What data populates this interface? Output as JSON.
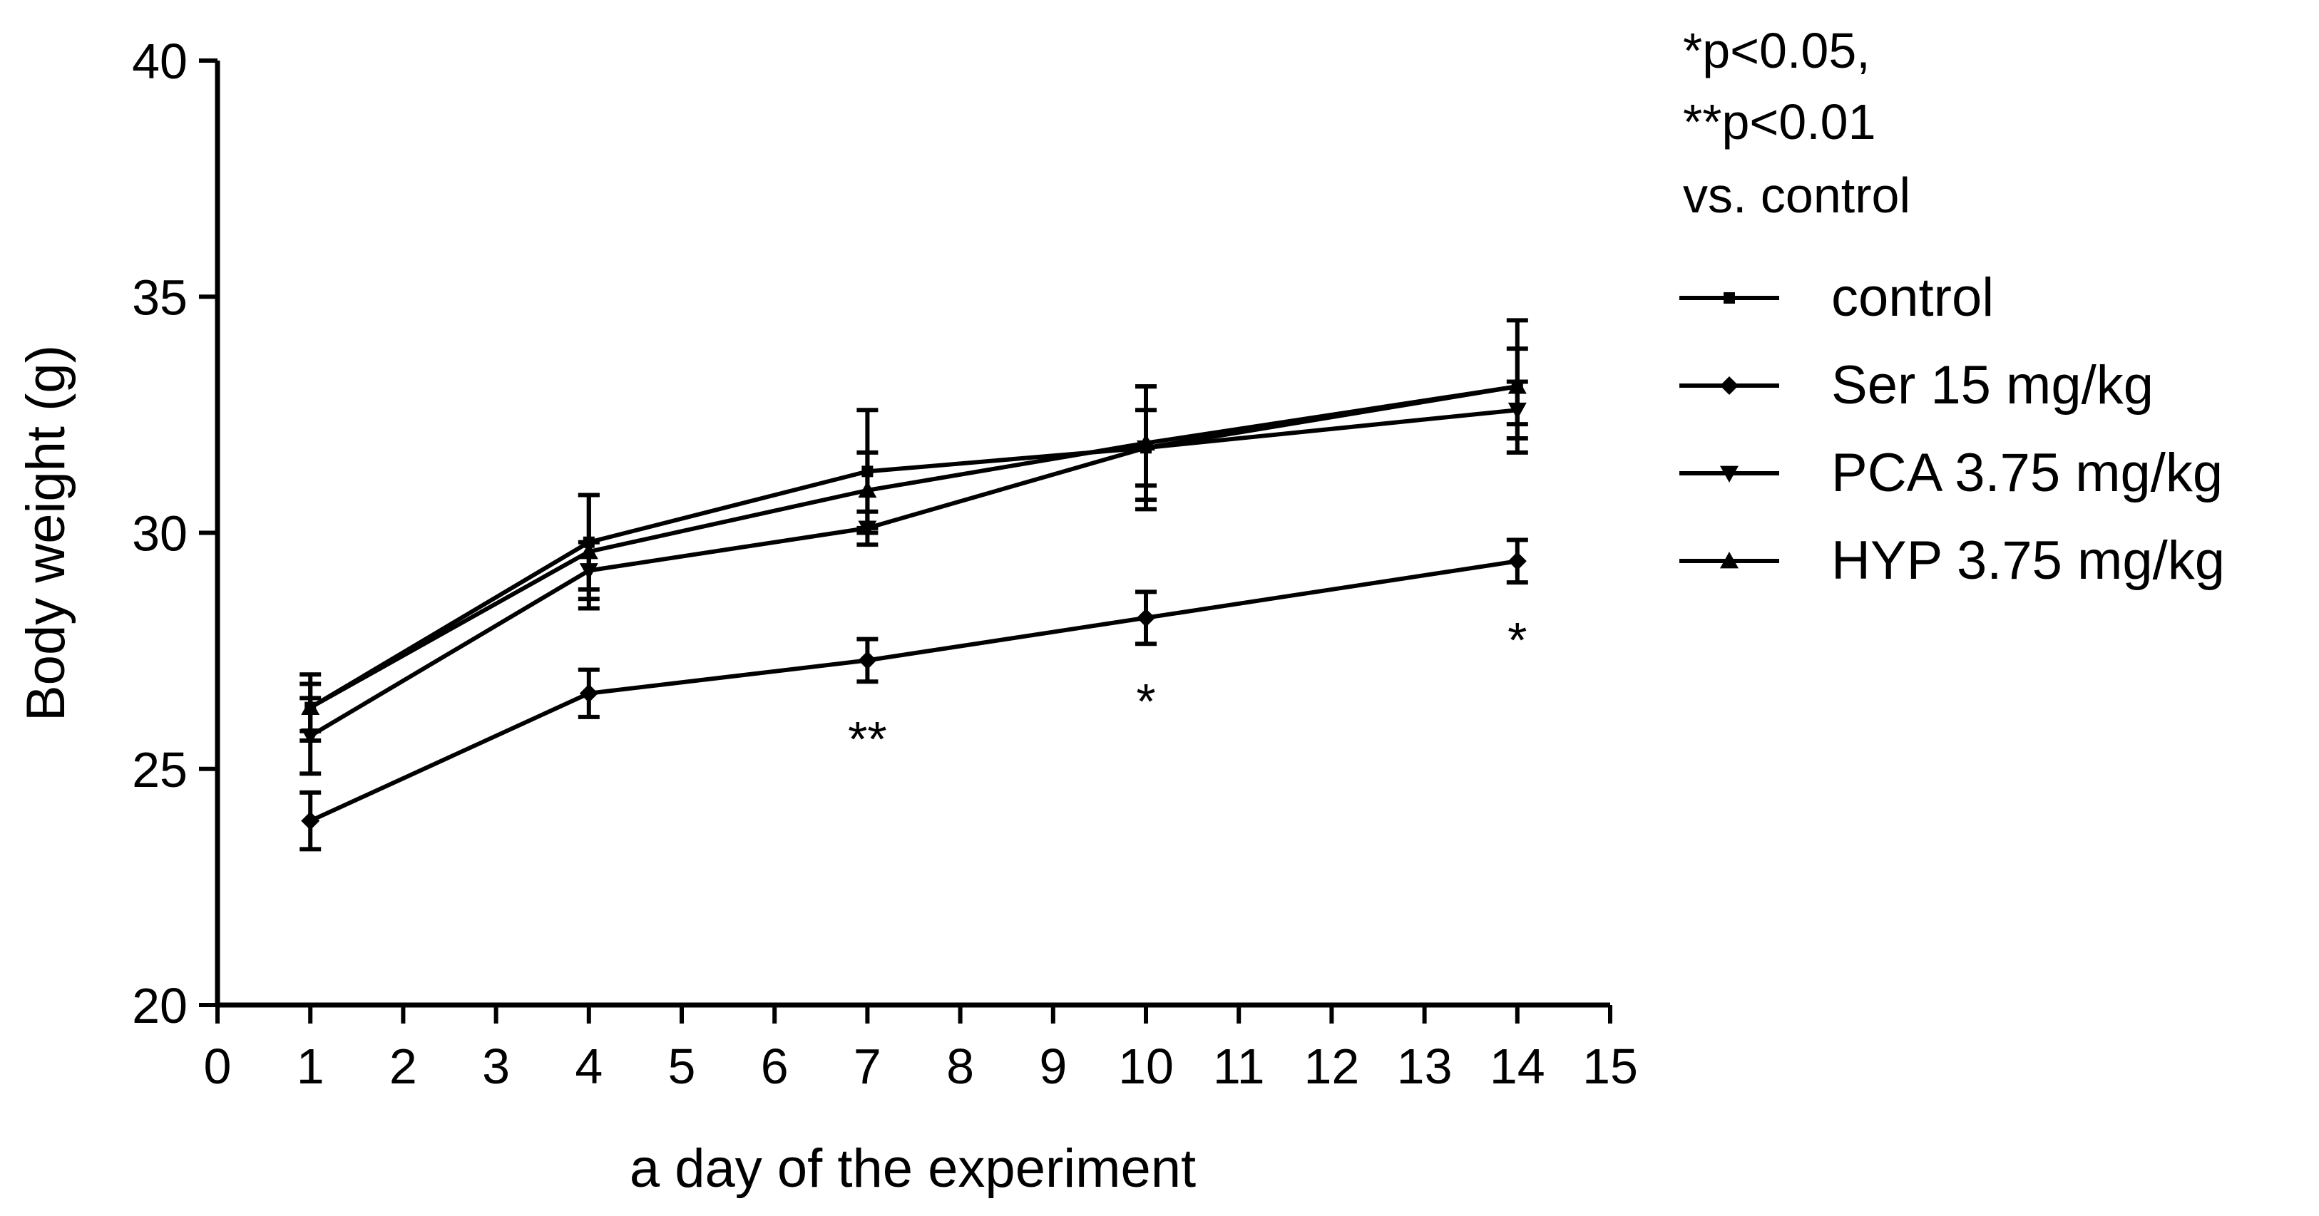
{
  "chart_data": {
    "type": "line",
    "title": "",
    "xlabel": "a day of the experiment",
    "ylabel": "Body weight (g)",
    "xlim": [
      0,
      15
    ],
    "ylim": [
      20,
      40
    ],
    "xticks": [
      "0",
      "1",
      "2",
      "3",
      "4",
      "5",
      "6",
      "7",
      "8",
      "9",
      "10",
      "11",
      "12",
      "13",
      "14",
      "15"
    ],
    "yticks": [
      "20",
      "25",
      "30",
      "35",
      "40"
    ],
    "grid": false,
    "x": [
      1,
      4,
      7,
      10,
      14
    ],
    "series": [
      {
        "name": "control",
        "marker": "square",
        "values": [
          26.3,
          29.8,
          31.3,
          31.8,
          33.1
        ],
        "errors": [
          0.7,
          1.0,
          1.3,
          1.3,
          1.4
        ]
      },
      {
        "name": "Ser 15 mg/kg",
        "marker": "diamond",
        "values": [
          23.9,
          26.6,
          27.3,
          28.2,
          29.4
        ],
        "errors": [
          0.6,
          0.5,
          0.45,
          0.55,
          0.45
        ]
      },
      {
        "name": "PCA 3.75 mg/kg",
        "marker": "triangle-down",
        "values": [
          25.7,
          29.2,
          30.1,
          31.8,
          32.6
        ],
        "errors": [
          0.8,
          0.6,
          0.35,
          0.8,
          0.6
        ]
      },
      {
        "name": "HYP 3.75 mg/kg",
        "marker": "triangle-up",
        "values": [
          26.3,
          29.6,
          30.9,
          31.9,
          33.1
        ],
        "errors": [
          0.5,
          1.2,
          0.8,
          1.2,
          0.8
        ]
      }
    ],
    "significance": [
      {
        "x": 7,
        "label": "**"
      },
      {
        "x": 10,
        "label": "*"
      },
      {
        "x": 14,
        "label": "*"
      }
    ],
    "annotation_lines": [
      "*p<0.05,",
      "**p<0.01",
      "vs. control"
    ],
    "legend_position": "right"
  }
}
